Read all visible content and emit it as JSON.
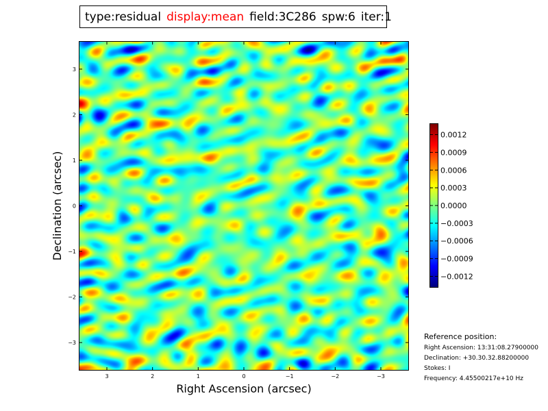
{
  "title": {
    "type": "type:residual",
    "display": "display:mean",
    "field": "field:3C286",
    "spw": "spw:6",
    "iter": "iter:1"
  },
  "colors": {
    "highlight": "#ff0000",
    "colormap": "jet"
  },
  "chart_data": {
    "type": "heatmap",
    "title": "type:residual display:mean field:3C286 spw:6 iter:1",
    "xlabel": "Right Ascension (arcsec)",
    "ylabel": "Declination (arcsec)",
    "xlim": [
      3.6,
      -3.6
    ],
    "ylim": [
      -3.6,
      3.6
    ],
    "x_ticks": [
      3,
      2,
      1,
      0,
      -1,
      -2,
      -3
    ],
    "x_tick_labels": [
      "3",
      "2",
      "1",
      "0",
      "−1",
      "−2",
      "−3"
    ],
    "y_ticks": [
      3,
      2,
      1,
      0,
      -1,
      -2,
      -3
    ],
    "y_tick_labels": [
      "3",
      "2",
      "1",
      "0",
      "−1",
      "−2",
      "−3"
    ],
    "colorbar": {
      "vmin": -0.00138,
      "vmax": 0.00138,
      "ticks": [
        0.0012,
        0.0009,
        0.0006,
        0.0003,
        0.0,
        -0.0003,
        -0.0006,
        -0.0009,
        -0.0012
      ],
      "tick_labels": [
        "0.0012",
        "0.0009",
        "0.0006",
        "0.0003",
        "0.0000",
        "−0.0003",
        "−0.0006",
        "−0.0009",
        "−0.0012"
      ]
    },
    "field_description": "Residual noise image, values mostly near 0 with scattered peaks up to about ±0.0013"
  },
  "reference": {
    "title": "Reference position:",
    "ra": "Right Ascension: 13:31:08.27900000",
    "dec": "Declination: +30.30.32.88200000",
    "stokes": "Stokes: I",
    "frequency": "Frequency: 4.45500217e+10 Hz"
  }
}
